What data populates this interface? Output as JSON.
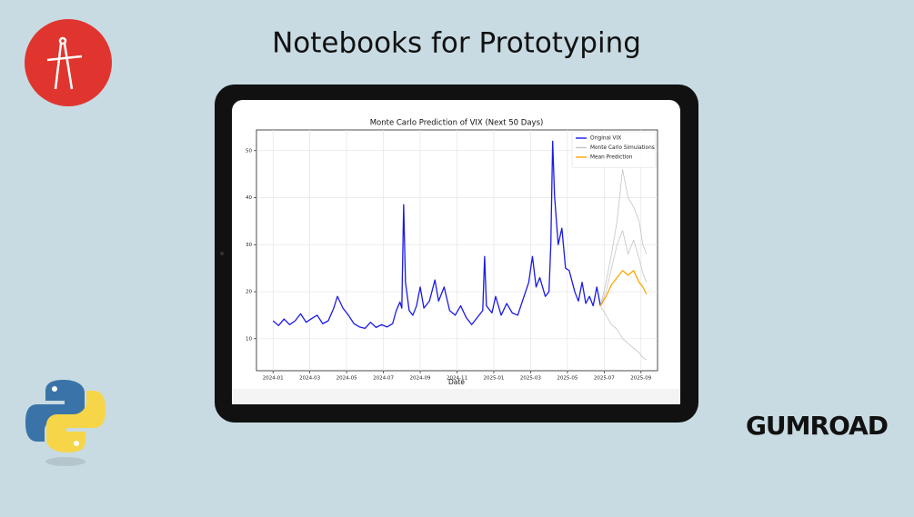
{
  "title": "Notebooks for Prototyping",
  "brand": "GUMROAD",
  "chart_data": {
    "type": "line",
    "title": "Monte Carlo Prediction of VIX (Next 50 Days)",
    "x_label": "Date",
    "xlim": [
      -0.9,
      20.9
    ],
    "ylim": [
      3.2,
      54.4
    ],
    "xticks": [
      {
        "value": 0,
        "label": "2024-01"
      },
      {
        "value": 2,
        "label": "2024-03"
      },
      {
        "value": 4,
        "label": "2024-05"
      },
      {
        "value": 6,
        "label": "2024-07"
      },
      {
        "value": 8,
        "label": "2024-09"
      },
      {
        "value": 10,
        "label": "2024-11"
      },
      {
        "value": 12,
        "label": "2025-01"
      },
      {
        "value": 14,
        "label": "2025-03"
      },
      {
        "value": 16,
        "label": "2025-05"
      },
      {
        "value": 18,
        "label": "2025-07"
      },
      {
        "value": 20,
        "label": "2025-09"
      }
    ],
    "yticks": [
      10,
      20,
      30,
      40,
      50
    ],
    "grid": true,
    "legend": "upper right",
    "series": [
      {
        "name": "Original VIX",
        "color": "#1a1ae6",
        "x": [
          0,
          0.3,
          0.6,
          0.9,
          1.2,
          1.5,
          1.8,
          2.1,
          2.4,
          2.7,
          3.0,
          3.3,
          3.5,
          3.8,
          4.1,
          4.4,
          4.7,
          5.0,
          5.3,
          5.6,
          5.9,
          6.2,
          6.5,
          6.7,
          6.9,
          7.0,
          7.1,
          7.2,
          7.4,
          7.6,
          7.8,
          8.0,
          8.2,
          8.5,
          8.8,
          9.0,
          9.3,
          9.6,
          9.9,
          10.2,
          10.5,
          10.8,
          11.1,
          11.4,
          11.5,
          11.6,
          11.9,
          12.1,
          12.4,
          12.7,
          13.0,
          13.3,
          13.6,
          13.9,
          14.1,
          14.3,
          14.5,
          14.8,
          15.0,
          15.1,
          15.2,
          15.3,
          15.5,
          15.7,
          15.9,
          16.1,
          16.4,
          16.6,
          16.8,
          17.0,
          17.2,
          17.4,
          17.6,
          17.8
        ],
        "values": [
          13.8,
          12.8,
          14.2,
          13,
          13.8,
          15.3,
          13.5,
          14.3,
          15,
          13.2,
          13.8,
          16.5,
          19,
          16.5,
          15,
          13.2,
          12.5,
          12.2,
          13.5,
          12.4,
          13,
          12.5,
          13.2,
          16,
          17.8,
          16.5,
          38.5,
          22,
          16,
          15,
          17,
          21,
          16.5,
          18,
          22.5,
          18,
          21,
          16,
          15,
          17,
          14.5,
          13,
          14.5,
          16,
          27.5,
          17,
          15.5,
          19,
          15,
          17.5,
          15.5,
          15,
          18.5,
          22,
          27.5,
          21,
          23,
          19,
          20,
          30,
          52,
          40.5,
          30,
          33.5,
          25,
          24.5,
          20,
          18,
          22,
          17.5,
          19,
          17,
          21,
          17
        ]
      },
      {
        "name": "Monte Carlo Simulations",
        "color": "#c4c4c4",
        "x": [
          17.8,
          18.1,
          18.4,
          18.7,
          19.0,
          19.3,
          19.6,
          19.9,
          20.1,
          20.3
        ],
        "values": [
          17,
          22,
          28,
          35,
          46,
          40,
          38,
          35,
          30,
          28
        ]
      },
      {
        "color": "#c4c4c4",
        "x": [
          17.8,
          18.1,
          18.4,
          18.7,
          19.0,
          19.3,
          19.6,
          19.9,
          20.1,
          20.3
        ],
        "values": [
          17,
          15,
          13,
          12,
          10,
          9,
          8,
          7,
          6,
          5.5
        ]
      },
      {
        "color": "#c4c4c4",
        "x": [
          17.8,
          18.1,
          18.4,
          18.7,
          19.0,
          19.3,
          19.6,
          19.9,
          20.1,
          20.3
        ],
        "values": [
          17,
          20,
          25,
          30,
          33,
          28,
          31,
          27,
          24,
          22
        ]
      },
      {
        "name": "Mean Prediction",
        "color": "#ffa500",
        "x": [
          17.8,
          18.1,
          18.4,
          18.7,
          19.0,
          19.3,
          19.6,
          19.9,
          20.1,
          20.3
        ],
        "values": [
          17,
          19,
          21.5,
          23,
          24.5,
          23.5,
          24.5,
          22,
          21,
          19.5
        ]
      }
    ]
  }
}
